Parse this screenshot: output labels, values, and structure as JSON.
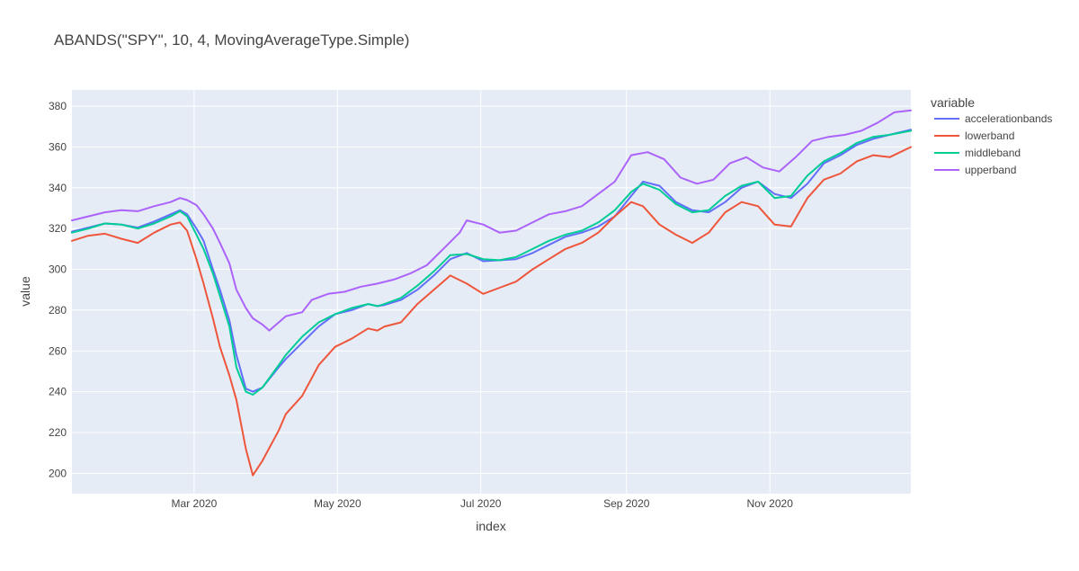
{
  "chart_data": {
    "type": "line",
    "title": "ABANDS(\"SPY\", 10, 4, MovingAverageType.Simple)",
    "xlabel": "index",
    "ylabel": "value",
    "x_range": [
      "2020-01-09",
      "2020-12-31"
    ],
    "ylim": [
      190,
      388
    ],
    "x_ticks": [
      {
        "date": "2020-03-01",
        "label": "Mar 2020"
      },
      {
        "date": "2020-05-01",
        "label": "May 2020"
      },
      {
        "date": "2020-07-01",
        "label": "Jul 2020"
      },
      {
        "date": "2020-09-01",
        "label": "Sep 2020"
      },
      {
        "date": "2020-11-01",
        "label": "Nov 2020"
      }
    ],
    "y_ticks": [
      200,
      220,
      240,
      260,
      280,
      300,
      320,
      340,
      360,
      380
    ],
    "grid": true,
    "plot_background": "#E5ECF6",
    "legend": {
      "title": "variable",
      "position": "right"
    },
    "series": [
      {
        "name": "accelerationbands",
        "color": "#636EFA",
        "points": [
          [
            "2020-01-09",
            318.5
          ],
          [
            "2020-01-16",
            320.5
          ],
          [
            "2020-01-23",
            322.5
          ],
          [
            "2020-01-30",
            322.0
          ],
          [
            "2020-02-06",
            320.5
          ],
          [
            "2020-02-13",
            323.5
          ],
          [
            "2020-02-20",
            327.0
          ],
          [
            "2020-02-24",
            329.0
          ],
          [
            "2020-02-27",
            327.0
          ],
          [
            "2020-03-02",
            320.0
          ],
          [
            "2020-03-05",
            314.0
          ],
          [
            "2020-03-09",
            300.0
          ],
          [
            "2020-03-12",
            290.0
          ],
          [
            "2020-03-16",
            275.0
          ],
          [
            "2020-03-19",
            258.0
          ],
          [
            "2020-03-23",
            241.5
          ],
          [
            "2020-03-26",
            240.0
          ],
          [
            "2020-03-30",
            242.0
          ],
          [
            "2020-04-06",
            252.0
          ],
          [
            "2020-04-09",
            256.0
          ],
          [
            "2020-04-16",
            264.0
          ],
          [
            "2020-04-23",
            272.0
          ],
          [
            "2020-04-30",
            278.0
          ],
          [
            "2020-05-07",
            280.0
          ],
          [
            "2020-05-14",
            283.0
          ],
          [
            "2020-05-18",
            282.0
          ],
          [
            "2020-05-21",
            282.5
          ],
          [
            "2020-05-28",
            285.0
          ],
          [
            "2020-06-04",
            290.0
          ],
          [
            "2020-06-11",
            297.0
          ],
          [
            "2020-06-18",
            305.0
          ],
          [
            "2020-06-25",
            308.0
          ],
          [
            "2020-07-02",
            304.0
          ],
          [
            "2020-07-09",
            304.5
          ],
          [
            "2020-07-16",
            305.0
          ],
          [
            "2020-07-23",
            308.0
          ],
          [
            "2020-07-30",
            312.0
          ],
          [
            "2020-08-06",
            316.0
          ],
          [
            "2020-08-13",
            318.0
          ],
          [
            "2020-08-20",
            321.0
          ],
          [
            "2020-08-27",
            326.0
          ],
          [
            "2020-09-03",
            336.0
          ],
          [
            "2020-09-08",
            343.0
          ],
          [
            "2020-09-15",
            341.0
          ],
          [
            "2020-09-22",
            333.0
          ],
          [
            "2020-09-29",
            329.0
          ],
          [
            "2020-10-06",
            328.0
          ],
          [
            "2020-10-13",
            333.0
          ],
          [
            "2020-10-20",
            340.0
          ],
          [
            "2020-10-27",
            343.0
          ],
          [
            "2020-11-03",
            337.0
          ],
          [
            "2020-11-10",
            335.0
          ],
          [
            "2020-11-17",
            342.0
          ],
          [
            "2020-11-24",
            352.0
          ],
          [
            "2020-12-01",
            356.0
          ],
          [
            "2020-12-08",
            361.0
          ],
          [
            "2020-12-15",
            364.0
          ],
          [
            "2020-12-22",
            366.0
          ],
          [
            "2020-12-31",
            368.5
          ]
        ]
      },
      {
        "name": "lowerband",
        "color": "#EF553B",
        "points": [
          [
            "2020-01-09",
            314.0
          ],
          [
            "2020-01-16",
            316.5
          ],
          [
            "2020-01-23",
            317.5
          ],
          [
            "2020-01-30",
            315.0
          ],
          [
            "2020-02-06",
            313.0
          ],
          [
            "2020-02-13",
            318.0
          ],
          [
            "2020-02-20",
            322.0
          ],
          [
            "2020-02-24",
            323.0
          ],
          [
            "2020-02-27",
            319.0
          ],
          [
            "2020-03-02",
            305.0
          ],
          [
            "2020-03-05",
            293.0
          ],
          [
            "2020-03-09",
            276.0
          ],
          [
            "2020-03-12",
            262.0
          ],
          [
            "2020-03-16",
            248.0
          ],
          [
            "2020-03-19",
            236.0
          ],
          [
            "2020-03-23",
            212.0
          ],
          [
            "2020-03-26",
            199.0
          ],
          [
            "2020-03-30",
            206.0
          ],
          [
            "2020-04-06",
            221.0
          ],
          [
            "2020-04-09",
            229.0
          ],
          [
            "2020-04-16",
            238.0
          ],
          [
            "2020-04-23",
            253.0
          ],
          [
            "2020-04-30",
            262.0
          ],
          [
            "2020-05-07",
            266.0
          ],
          [
            "2020-05-14",
            271.0
          ],
          [
            "2020-05-18",
            270.0
          ],
          [
            "2020-05-21",
            272.0
          ],
          [
            "2020-05-28",
            274.0
          ],
          [
            "2020-06-04",
            283.0
          ],
          [
            "2020-06-11",
            290.0
          ],
          [
            "2020-06-18",
            297.0
          ],
          [
            "2020-06-25",
            293.0
          ],
          [
            "2020-07-02",
            288.0
          ],
          [
            "2020-07-09",
            291.0
          ],
          [
            "2020-07-16",
            294.0
          ],
          [
            "2020-07-23",
            300.0
          ],
          [
            "2020-07-30",
            305.0
          ],
          [
            "2020-08-06",
            310.0
          ],
          [
            "2020-08-13",
            313.0
          ],
          [
            "2020-08-20",
            318.0
          ],
          [
            "2020-08-27",
            326.0
          ],
          [
            "2020-09-03",
            333.0
          ],
          [
            "2020-09-08",
            331.0
          ],
          [
            "2020-09-15",
            322.0
          ],
          [
            "2020-09-22",
            317.0
          ],
          [
            "2020-09-29",
            313.0
          ],
          [
            "2020-10-06",
            318.0
          ],
          [
            "2020-10-13",
            328.0
          ],
          [
            "2020-10-20",
            333.0
          ],
          [
            "2020-10-27",
            331.0
          ],
          [
            "2020-11-03",
            322.0
          ],
          [
            "2020-11-10",
            321.0
          ],
          [
            "2020-11-17",
            335.0
          ],
          [
            "2020-11-24",
            344.0
          ],
          [
            "2020-12-01",
            347.0
          ],
          [
            "2020-12-08",
            353.0
          ],
          [
            "2020-12-15",
            356.0
          ],
          [
            "2020-12-22",
            355.0
          ],
          [
            "2020-12-31",
            360.0
          ]
        ]
      },
      {
        "name": "middleband",
        "color": "#00CC96",
        "points": [
          [
            "2020-01-09",
            318.0
          ],
          [
            "2020-01-16",
            320.0
          ],
          [
            "2020-01-23",
            322.5
          ],
          [
            "2020-01-30",
            322.0
          ],
          [
            "2020-02-06",
            320.0
          ],
          [
            "2020-02-13",
            322.5
          ],
          [
            "2020-02-20",
            326.0
          ],
          [
            "2020-02-24",
            328.5
          ],
          [
            "2020-02-27",
            326.0
          ],
          [
            "2020-03-02",
            317.0
          ],
          [
            "2020-03-05",
            310.0
          ],
          [
            "2020-03-09",
            298.0
          ],
          [
            "2020-03-12",
            287.0
          ],
          [
            "2020-03-16",
            272.0
          ],
          [
            "2020-03-19",
            252.0
          ],
          [
            "2020-03-23",
            240.0
          ],
          [
            "2020-03-26",
            238.5
          ],
          [
            "2020-03-30",
            242.0
          ],
          [
            "2020-04-06",
            253.0
          ],
          [
            "2020-04-09",
            258.0
          ],
          [
            "2020-04-16",
            267.0
          ],
          [
            "2020-04-23",
            274.0
          ],
          [
            "2020-04-30",
            278.0
          ],
          [
            "2020-05-07",
            281.0
          ],
          [
            "2020-05-14",
            283.0
          ],
          [
            "2020-05-18",
            282.0
          ],
          [
            "2020-05-21",
            283.0
          ],
          [
            "2020-05-28",
            286.0
          ],
          [
            "2020-06-04",
            292.0
          ],
          [
            "2020-06-11",
            299.0
          ],
          [
            "2020-06-18",
            307.0
          ],
          [
            "2020-06-25",
            307.5
          ],
          [
            "2020-07-02",
            305.0
          ],
          [
            "2020-07-09",
            304.5
          ],
          [
            "2020-07-16",
            306.0
          ],
          [
            "2020-07-23",
            310.0
          ],
          [
            "2020-07-30",
            314.0
          ],
          [
            "2020-08-06",
            317.0
          ],
          [
            "2020-08-13",
            319.0
          ],
          [
            "2020-08-20",
            323.0
          ],
          [
            "2020-08-27",
            329.0
          ],
          [
            "2020-09-03",
            338.0
          ],
          [
            "2020-09-08",
            342.0
          ],
          [
            "2020-09-15",
            339.0
          ],
          [
            "2020-09-22",
            332.0
          ],
          [
            "2020-09-29",
            328.0
          ],
          [
            "2020-10-06",
            329.0
          ],
          [
            "2020-10-13",
            336.0
          ],
          [
            "2020-10-20",
            341.0
          ],
          [
            "2020-10-27",
            343.0
          ],
          [
            "2020-11-03",
            335.0
          ],
          [
            "2020-11-10",
            336.0
          ],
          [
            "2020-11-17",
            346.0
          ],
          [
            "2020-11-24",
            353.0
          ],
          [
            "2020-12-01",
            357.0
          ],
          [
            "2020-12-08",
            362.0
          ],
          [
            "2020-12-15",
            365.0
          ],
          [
            "2020-12-22",
            366.0
          ],
          [
            "2020-12-31",
            368.0
          ]
        ]
      },
      {
        "name": "upperband",
        "color": "#AB63FA",
        "points": [
          [
            "2020-01-09",
            324.0
          ],
          [
            "2020-01-16",
            326.0
          ],
          [
            "2020-01-23",
            328.0
          ],
          [
            "2020-01-30",
            329.0
          ],
          [
            "2020-02-06",
            328.5
          ],
          [
            "2020-02-13",
            331.0
          ],
          [
            "2020-02-20",
            333.0
          ],
          [
            "2020-02-24",
            335.0
          ],
          [
            "2020-02-27",
            334.0
          ],
          [
            "2020-03-02",
            331.5
          ],
          [
            "2020-03-05",
            327.0
          ],
          [
            "2020-03-09",
            320.0
          ],
          [
            "2020-03-12",
            313.0
          ],
          [
            "2020-03-16",
            303.0
          ],
          [
            "2020-03-19",
            290.0
          ],
          [
            "2020-03-23",
            281.0
          ],
          [
            "2020-03-26",
            276.0
          ],
          [
            "2020-03-30",
            273.0
          ],
          [
            "2020-04-02",
            270.0
          ],
          [
            "2020-04-09",
            277.0
          ],
          [
            "2020-04-16",
            279.0
          ],
          [
            "2020-04-20",
            285.0
          ],
          [
            "2020-04-27",
            288.0
          ],
          [
            "2020-05-04",
            289.0
          ],
          [
            "2020-05-11",
            291.5
          ],
          [
            "2020-05-18",
            293.0
          ],
          [
            "2020-05-25",
            295.0
          ],
          [
            "2020-06-01",
            298.0
          ],
          [
            "2020-06-08",
            302.0
          ],
          [
            "2020-06-15",
            310.0
          ],
          [
            "2020-06-22",
            318.0
          ],
          [
            "2020-06-25",
            324.0
          ],
          [
            "2020-07-02",
            322.0
          ],
          [
            "2020-07-09",
            318.0
          ],
          [
            "2020-07-16",
            319.0
          ],
          [
            "2020-07-23",
            323.0
          ],
          [
            "2020-07-30",
            327.0
          ],
          [
            "2020-08-06",
            328.5
          ],
          [
            "2020-08-13",
            331.0
          ],
          [
            "2020-08-20",
            337.0
          ],
          [
            "2020-08-27",
            343.0
          ],
          [
            "2020-09-03",
            356.0
          ],
          [
            "2020-09-10",
            357.5
          ],
          [
            "2020-09-17",
            354.0
          ],
          [
            "2020-09-24",
            345.0
          ],
          [
            "2020-10-01",
            342.0
          ],
          [
            "2020-10-08",
            344.0
          ],
          [
            "2020-10-15",
            352.0
          ],
          [
            "2020-10-22",
            355.0
          ],
          [
            "2020-10-29",
            350.0
          ],
          [
            "2020-11-05",
            348.0
          ],
          [
            "2020-11-12",
            355.0
          ],
          [
            "2020-11-19",
            363.0
          ],
          [
            "2020-11-26",
            365.0
          ],
          [
            "2020-12-03",
            366.0
          ],
          [
            "2020-12-10",
            368.0
          ],
          [
            "2020-12-17",
            372.0
          ],
          [
            "2020-12-24",
            377.0
          ],
          [
            "2020-12-31",
            378.0
          ]
        ]
      }
    ]
  }
}
